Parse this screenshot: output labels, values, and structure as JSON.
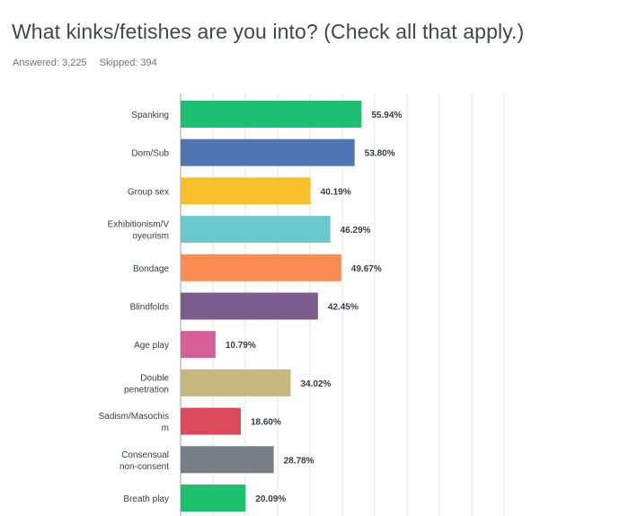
{
  "question": {
    "title": "What kinks/fetishes are you into? (Check all that apply.)",
    "answered_label": "Answered: 3,225",
    "skipped_label": "Skipped: 394"
  },
  "chart_data": {
    "type": "bar",
    "orientation": "horizontal",
    "categories": [
      "Spanking",
      "Dom/Sub",
      "Group sex",
      "Exhibitionism/Voyeurism",
      "Bondage",
      "Blindfolds",
      "Age play",
      "Double penetration",
      "Sadism/Masochism",
      "Consensual non-consent",
      "Breath play"
    ],
    "category_lines": [
      [
        "Spanking"
      ],
      [
        "Dom/Sub"
      ],
      [
        "Group sex"
      ],
      [
        "Exhibitionism/V",
        "oyeurism"
      ],
      [
        "Bondage"
      ],
      [
        "Blindfolds"
      ],
      [
        "Age play"
      ],
      [
        "Double",
        "penetration"
      ],
      [
        "Sadism/Masochis",
        "m"
      ],
      [
        "Consensual",
        "non-consent"
      ],
      [
        "Breath play"
      ]
    ],
    "values": [
      55.94,
      53.8,
      40.19,
      46.29,
      49.67,
      42.45,
      10.79,
      34.02,
      18.6,
      28.78,
      20.09
    ],
    "value_labels": [
      "55.94%",
      "53.80%",
      "40.19%",
      "46.29%",
      "49.67%",
      "42.45%",
      "10.79%",
      "34.02%",
      "18.60%",
      "28.78%",
      "20.09%"
    ],
    "colors": [
      "#1cc06f",
      "#4f76b3",
      "#f7bf2a",
      "#6bc8cd",
      "#fd8c52",
      "#7b5c8c",
      "#d55f96",
      "#c6b77e",
      "#dd4a5d",
      "#767f85",
      "#1cc06f"
    ],
    "xlim": [
      0,
      100
    ],
    "grid": true,
    "gridline_color": "#e2e4e6"
  }
}
